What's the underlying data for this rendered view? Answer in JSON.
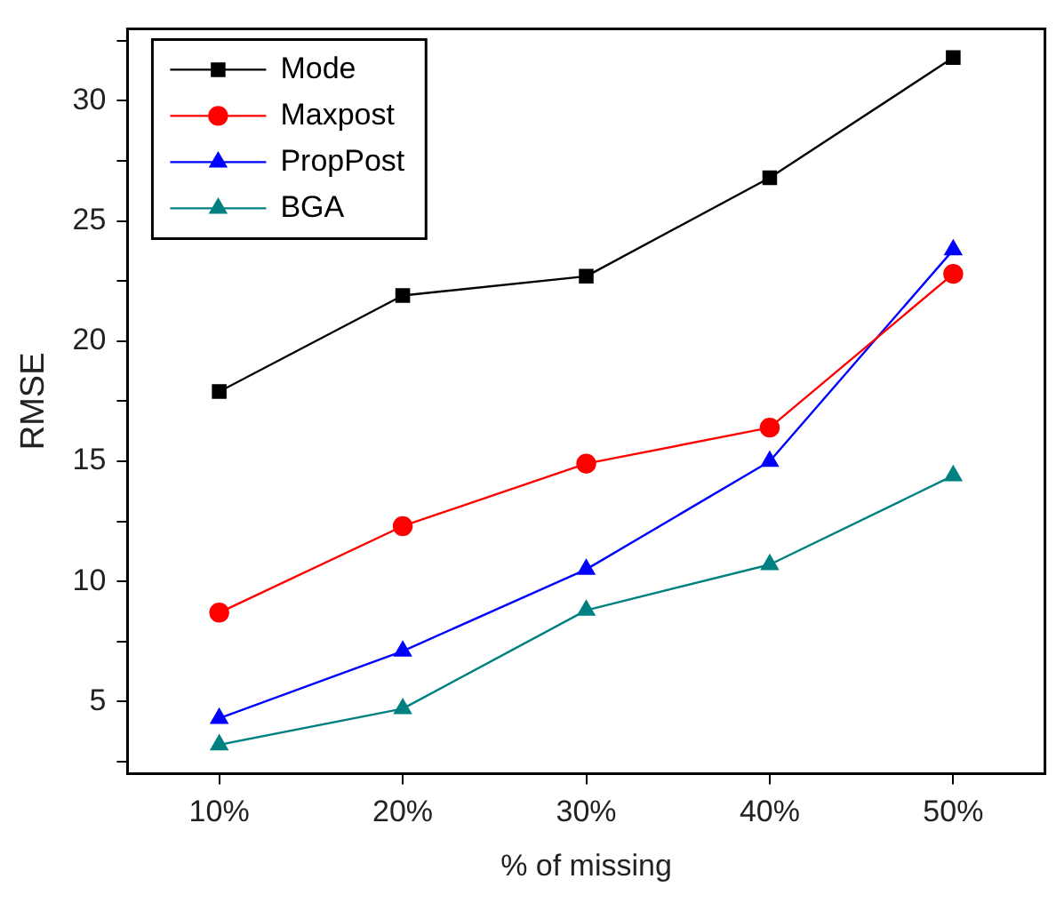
{
  "chart_data": {
    "type": "line",
    "xlabel": "% of missing",
    "ylabel": "RMSE",
    "categories": [
      "10%",
      "20%",
      "30%",
      "40%",
      "50%"
    ],
    "ylim": [
      2,
      33
    ],
    "yticks": [
      {
        "value": 2.5,
        "label": null
      },
      5,
      {
        "value": 7.5,
        "label": null
      },
      10,
      {
        "value": 12.5,
        "label": null
      },
      15,
      {
        "value": 17.5,
        "label": null
      },
      20,
      {
        "value": 22.5,
        "label": null
      },
      25,
      {
        "value": 27.5,
        "label": null
      },
      30,
      {
        "value": 32.5,
        "label": null
      }
    ],
    "grid": false,
    "legend": "top left",
    "line_style": "solid",
    "series": [
      {
        "name": "Mode",
        "color": "#000000",
        "marker": "square",
        "values": [
          17.9,
          21.9,
          22.7,
          26.8,
          31.8
        ]
      },
      {
        "name": "Maxpost",
        "color": "#ff0000",
        "marker": "circle",
        "values": [
          8.7,
          12.3,
          14.9,
          16.4,
          22.8
        ]
      },
      {
        "name": "PropPost",
        "color": "#0000ff",
        "marker": "triangle",
        "values": [
          4.3,
          7.1,
          10.5,
          15.0,
          23.8
        ]
      },
      {
        "name": "BGA",
        "color": "#008080",
        "marker": "triangle",
        "values": [
          3.2,
          4.7,
          8.8,
          10.7,
          14.4
        ]
      }
    ]
  }
}
